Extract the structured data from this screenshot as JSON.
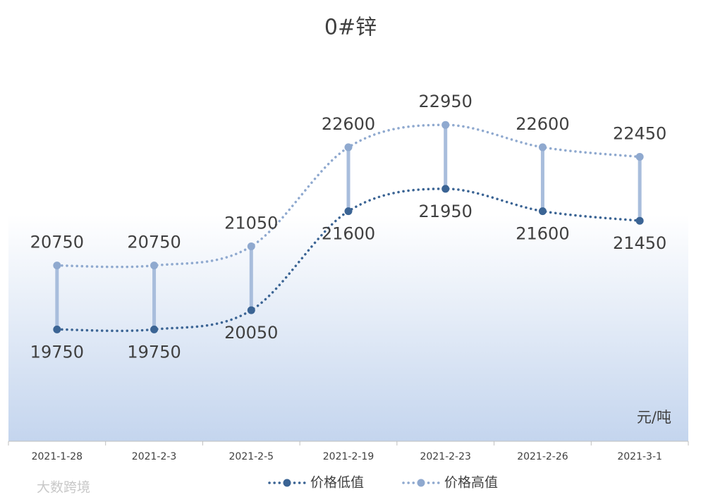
{
  "chart_data": {
    "type": "line",
    "title": "0#锌",
    "unit_label": "元/吨",
    "watermark": "大数跨境",
    "categories": [
      "2021-1-28",
      "2021-2-3",
      "2021-2-5",
      "2021-2-19",
      "2021-2-23",
      "2021-2-26",
      "2021-3-1"
    ],
    "series": [
      {
        "name": "价格低值",
        "color": "#3b6494",
        "values": [
          19750,
          19750,
          20050,
          21600,
          21950,
          21600,
          21450
        ]
      },
      {
        "name": "价格高值",
        "color": "#8fa9cf",
        "values": [
          20750,
          20750,
          21050,
          22600,
          22950,
          22600,
          22450
        ]
      }
    ],
    "drop_line_color": "#a8bddc",
    "ylim": [
      18000,
      24000
    ],
    "smooth": true
  }
}
